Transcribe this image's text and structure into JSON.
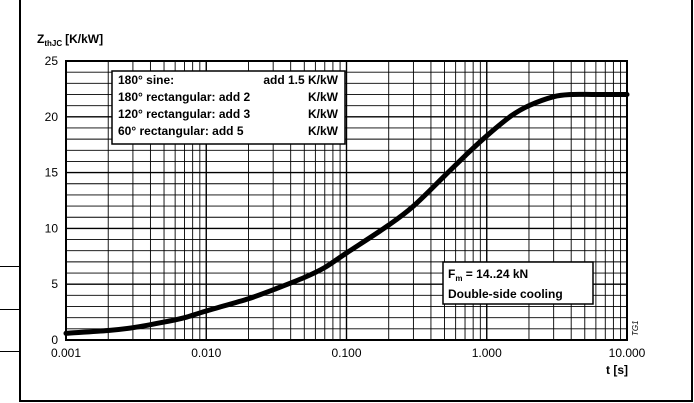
{
  "chart_data": {
    "type": "line",
    "title": "",
    "ylabel_main": "Z",
    "ylabel_sub": "thJC",
    "ylabel_unit": "[K/kW]",
    "xlabel": "t [s]",
    "x_scale": "log",
    "xlim": [
      0.001,
      10
    ],
    "ylim": [
      0,
      25
    ],
    "x_ticks": [
      0.001,
      0.01,
      0.1,
      1,
      10
    ],
    "x_tick_labels": [
      "0.001",
      "0.010",
      "0.100",
      "1.000",
      "10.000"
    ],
    "y_ticks": [
      0,
      5,
      10,
      15,
      20,
      25
    ],
    "y_tick_labels": [
      "0",
      "5",
      "10",
      "15",
      "20",
      "25"
    ],
    "grid": true,
    "series": [
      {
        "values": [
          {
            "x": 0.001,
            "y": 0.6
          },
          {
            "x": 0.002,
            "y": 0.85
          },
          {
            "x": 0.003,
            "y": 1.1
          },
          {
            "x": 0.005,
            "y": 1.6
          },
          {
            "x": 0.007,
            "y": 2.0
          },
          {
            "x": 0.01,
            "y": 2.6
          },
          {
            "x": 0.02,
            "y": 3.7
          },
          {
            "x": 0.03,
            "y": 4.5
          },
          {
            "x": 0.05,
            "y": 5.6
          },
          {
            "x": 0.07,
            "y": 6.5
          },
          {
            "x": 0.1,
            "y": 7.8
          },
          {
            "x": 0.2,
            "y": 10.3
          },
          {
            "x": 0.3,
            "y": 12.0
          },
          {
            "x": 0.5,
            "y": 14.7
          },
          {
            "x": 0.7,
            "y": 16.5
          },
          {
            "x": 1.0,
            "y": 18.3
          },
          {
            "x": 1.5,
            "y": 20.1
          },
          {
            "x": 2.0,
            "y": 21.0
          },
          {
            "x": 3.0,
            "y": 21.8
          },
          {
            "x": 4.0,
            "y": 22.0
          },
          {
            "x": 6.0,
            "y": 22.0
          },
          {
            "x": 10.0,
            "y": 22.0
          }
        ]
      }
    ],
    "legend_box": {
      "lines": [
        {
          "label": "180° sine:",
          "value": "add 1.5 K/kW"
        },
        {
          "label": "180° rectangular: add 2",
          "value": "K/kW"
        },
        {
          "label": "120° rectangular: add 3",
          "value": "K/kW"
        },
        {
          "label": "60° rectangular: add 5",
          "value": "K/kW"
        }
      ]
    },
    "condition_box": {
      "line1_main": "F",
      "line1_sub": "m",
      "line1_rest": " = 14..24 kN",
      "line2": "Double-side cooling"
    },
    "figure_code": "TG1",
    "colors": {
      "curve": "#000000",
      "grid": "#000000",
      "background": "#ffffff"
    }
  }
}
